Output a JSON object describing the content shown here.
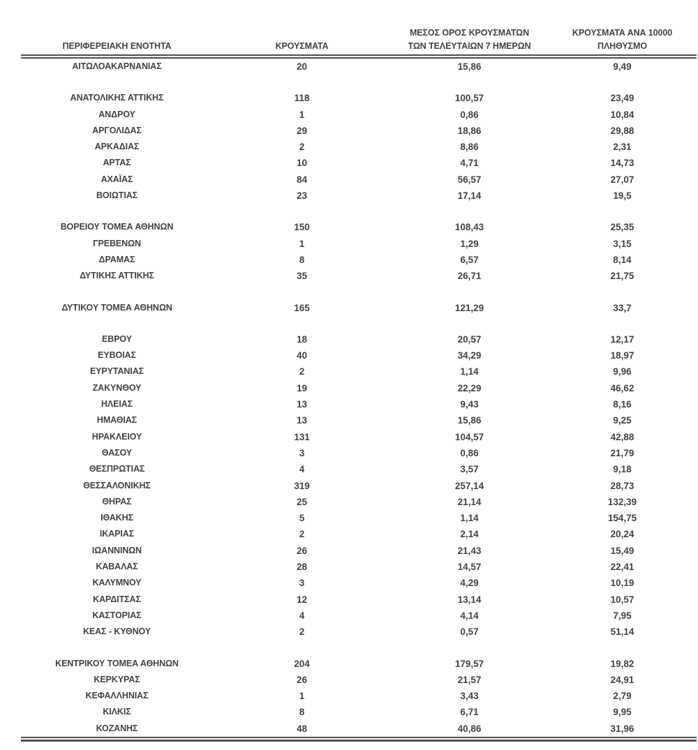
{
  "page": {
    "background": "#ffffff",
    "text_color": "#3f4246",
    "line_color": "#4b4d50"
  },
  "table": {
    "columns": [
      {
        "id": "region",
        "lines": [
          "ΠΕΡΙΦΕΡΕΙΑΚΗ ΕΝΟΤΗΤΑ"
        ]
      },
      {
        "id": "cases",
        "lines": [
          "ΚΡΟΥΣΜΑΤΑ"
        ]
      },
      {
        "id": "avg7",
        "lines": [
          "ΜΕΣΟΣ ΟΡΟΣ ΚΡΟΥΣΜΑΤΩΝ",
          "ΤΩΝ ΤΕΛΕΥΤΑΙΩΝ 7 ΗΜΕΡΩΝ"
        ]
      },
      {
        "id": "per10k",
        "lines": [
          "ΚΡΟΥΣΜΑΤΑ ΑΝΑ 10000",
          "ΠΛΗΘΥΣΜΟ"
        ]
      }
    ],
    "groups": [
      {
        "rows": [
          {
            "region": "ΑΙΤΩΛΟΑΚΑΡΝΑΝΙΑΣ",
            "cases": "20",
            "avg7": "15,86",
            "per10k": "9,49"
          }
        ]
      },
      {
        "rows": [
          {
            "region": "ΑΝΑΤΟΛΙΚΗΣ ΑΤΤΙΚΗΣ",
            "cases": "118",
            "avg7": "100,57",
            "per10k": "23,49"
          },
          {
            "region": "ΑΝΔΡΟΥ",
            "cases": "1",
            "avg7": "0,86",
            "per10k": "10,84"
          },
          {
            "region": "ΑΡΓΟΛΙΔΑΣ",
            "cases": "29",
            "avg7": "18,86",
            "per10k": "29,88"
          },
          {
            "region": "ΑΡΚΑΔΙΑΣ",
            "cases": "2",
            "avg7": "8,86",
            "per10k": "2,31"
          },
          {
            "region": "ΑΡΤΑΣ",
            "cases": "10",
            "avg7": "4,71",
            "per10k": "14,73"
          },
          {
            "region": "ΑΧΑΪΑΣ",
            "cases": "84",
            "avg7": "56,57",
            "per10k": "27,07"
          },
          {
            "region": "ΒΟΙΩΤΙΑΣ",
            "cases": "23",
            "avg7": "17,14",
            "per10k": "19,5"
          }
        ]
      },
      {
        "rows": [
          {
            "region": "ΒΟΡΕΙΟΥ ΤΟΜΕΑ ΑΘΗΝΩΝ",
            "cases": "150",
            "avg7": "108,43",
            "per10k": "25,35"
          },
          {
            "region": "ΓΡΕΒΕΝΩΝ",
            "cases": "1",
            "avg7": "1,29",
            "per10k": "3,15"
          },
          {
            "region": "ΔΡΑΜΑΣ",
            "cases": "8",
            "avg7": "6,57",
            "per10k": "8,14"
          },
          {
            "region": "ΔΥΤΙΚΗΣ ΑΤΤΙΚΗΣ",
            "cases": "35",
            "avg7": "26,71",
            "per10k": "21,75"
          }
        ]
      },
      {
        "rows": [
          {
            "region": "ΔΥΤΙΚΟΥ ΤΟΜΕΑ ΑΘΗΝΩΝ",
            "cases": "165",
            "avg7": "121,29",
            "per10k": "33,7"
          }
        ]
      },
      {
        "rows": [
          {
            "region": "ΕΒΡΟΥ",
            "cases": "18",
            "avg7": "20,57",
            "per10k": "12,17"
          },
          {
            "region": "ΕΥΒΟΙΑΣ",
            "cases": "40",
            "avg7": "34,29",
            "per10k": "18,97"
          },
          {
            "region": "ΕΥΡΥΤΑΝΙΑΣ",
            "cases": "2",
            "avg7": "1,14",
            "per10k": "9,96"
          },
          {
            "region": "ΖΑΚΥΝΘΟΥ",
            "cases": "19",
            "avg7": "22,29",
            "per10k": "46,62"
          },
          {
            "region": "ΗΛΕΙΑΣ",
            "cases": "13",
            "avg7": "9,43",
            "per10k": "8,16"
          },
          {
            "region": "ΗΜΑΘΙΑΣ",
            "cases": "13",
            "avg7": "15,86",
            "per10k": "9,25"
          },
          {
            "region": "ΗΡΑΚΛΕΙΟΥ",
            "cases": "131",
            "avg7": "104,57",
            "per10k": "42,88"
          },
          {
            "region": "ΘΑΣΟΥ",
            "cases": "3",
            "avg7": "0,86",
            "per10k": "21,79"
          },
          {
            "region": "ΘΕΣΠΡΩΤΙΑΣ",
            "cases": "4",
            "avg7": "3,57",
            "per10k": "9,18"
          },
          {
            "region": "ΘΕΣΣΑΛΟΝΙΚΗΣ",
            "cases": "319",
            "avg7": "257,14",
            "per10k": "28,73"
          },
          {
            "region": "ΘΗΡΑΣ",
            "cases": "25",
            "avg7": "21,14",
            "per10k": "132,39"
          },
          {
            "region": "ΙΘΑΚΗΣ",
            "cases": "5",
            "avg7": "1,14",
            "per10k": "154,75"
          },
          {
            "region": "ΙΚΑΡΙΑΣ",
            "cases": "2",
            "avg7": "2,14",
            "per10k": "20,24"
          },
          {
            "region": "ΙΩΑΝΝΙΝΩΝ",
            "cases": "26",
            "avg7": "21,43",
            "per10k": "15,49"
          },
          {
            "region": "ΚΑΒΑΛΑΣ",
            "cases": "28",
            "avg7": "14,57",
            "per10k": "22,41"
          },
          {
            "region": "ΚΑΛΥΜΝΟΥ",
            "cases": "3",
            "avg7": "4,29",
            "per10k": "10,19"
          },
          {
            "region": "ΚΑΡΔΙΤΣΑΣ",
            "cases": "12",
            "avg7": "13,14",
            "per10k": "10,57"
          },
          {
            "region": "ΚΑΣΤΟΡΙΑΣ",
            "cases": "4",
            "avg7": "4,14",
            "per10k": "7,95"
          },
          {
            "region": "ΚΕΑΣ - ΚΥΘΝΟΥ",
            "cases": "2",
            "avg7": "0,57",
            "per10k": "51,14"
          }
        ]
      },
      {
        "rows": [
          {
            "region": "ΚΕΝΤΡΙΚΟΥ ΤΟΜΕΑ ΑΘΗΝΩΝ",
            "cases": "204",
            "avg7": "179,57",
            "per10k": "19,82"
          },
          {
            "region": "ΚΕΡΚΥΡΑΣ",
            "cases": "26",
            "avg7": "21,57",
            "per10k": "24,91"
          },
          {
            "region": "ΚΕΦΑΛΛΗΝΙΑΣ",
            "cases": "1",
            "avg7": "3,43",
            "per10k": "2,79"
          },
          {
            "region": "ΚΙΛΚΙΣ",
            "cases": "8",
            "avg7": "6,71",
            "per10k": "9,95"
          },
          {
            "region": "ΚΟΖΑΝΗΣ",
            "cases": "48",
            "avg7": "40,86",
            "per10k": "31,96"
          }
        ]
      }
    ]
  }
}
